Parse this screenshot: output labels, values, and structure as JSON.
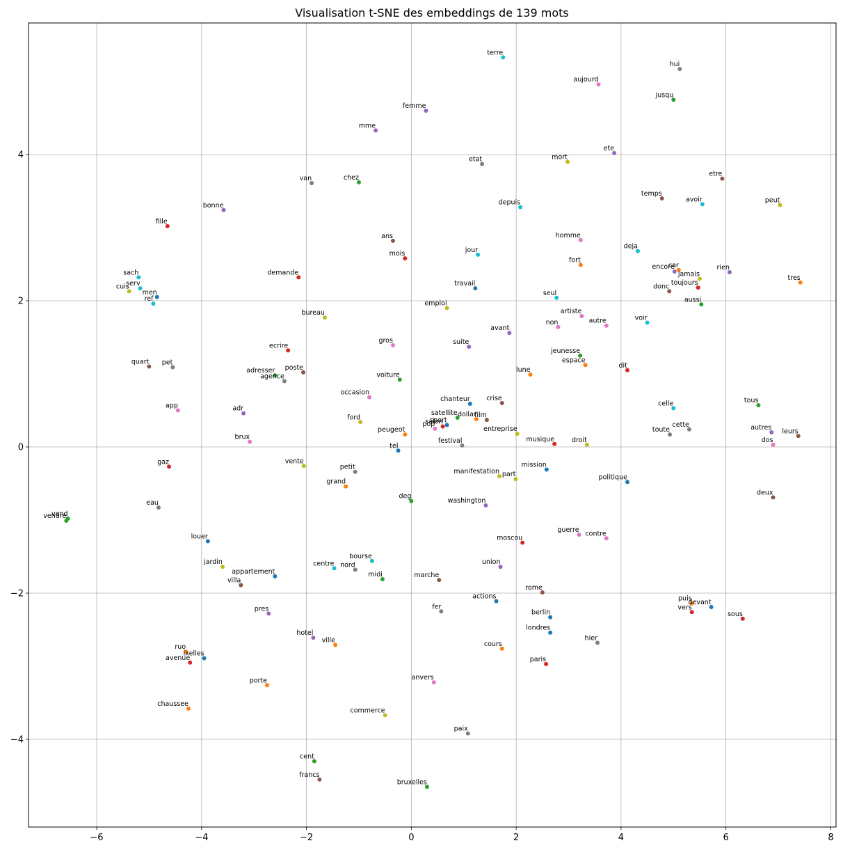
{
  "chart_data": {
    "type": "scatter",
    "title": "Visualisation t-SNE des embeddings de 139 mots",
    "xlabel": "",
    "ylabel": "",
    "xlim": [
      -7.3,
      8.1
    ],
    "ylim": [
      -5.2,
      5.8
    ],
    "xticks": [
      -6,
      -4,
      -2,
      0,
      2,
      4,
      6,
      8
    ],
    "yticks": [
      -4,
      -2,
      0,
      2,
      4
    ],
    "xtick_labels": [
      "−6",
      "−4",
      "−2",
      "0",
      "2",
      "4",
      "6",
      "8"
    ],
    "ytick_labels": [
      "−4",
      "−2",
      "0",
      "2",
      "4"
    ],
    "grid": true,
    "palette": [
      "#1f77b4",
      "#ff7f0e",
      "#2ca02c",
      "#d62728",
      "#9467bd",
      "#8c564b",
      "#e377c2",
      "#7f7f7f",
      "#bcbd22",
      "#17becf"
    ],
    "points": [
      {
        "word": "terre",
        "x": 1.75,
        "y": 5.33,
        "c": 9
      },
      {
        "word": "hui",
        "x": 5.12,
        "y": 5.17,
        "c": 7
      },
      {
        "word": "aujourd",
        "x": 3.57,
        "y": 4.96,
        "c": 6
      },
      {
        "word": "jusqu",
        "x": 5.0,
        "y": 4.75,
        "c": 2
      },
      {
        "word": "femme",
        "x": 0.28,
        "y": 4.6,
        "c": 4
      },
      {
        "word": "mme",
        "x": -0.68,
        "y": 4.33,
        "c": 4
      },
      {
        "word": "ete",
        "x": 3.87,
        "y": 4.02,
        "c": 4
      },
      {
        "word": "mort",
        "x": 2.98,
        "y": 3.9,
        "c": 8
      },
      {
        "word": "etat",
        "x": 1.35,
        "y": 3.87,
        "c": 7
      },
      {
        "word": "etre",
        "x": 5.93,
        "y": 3.67,
        "c": 5
      },
      {
        "word": "van",
        "x": -1.9,
        "y": 3.61,
        "c": 7
      },
      {
        "word": "chez",
        "x": -1.0,
        "y": 3.62,
        "c": 2
      },
      {
        "word": "temps",
        "x": 4.78,
        "y": 3.4,
        "c": 5
      },
      {
        "word": "avoir",
        "x": 5.55,
        "y": 3.32,
        "c": 9
      },
      {
        "word": "peut",
        "x": 7.03,
        "y": 3.31,
        "c": 8
      },
      {
        "word": "depuis",
        "x": 2.08,
        "y": 3.28,
        "c": 9
      },
      {
        "word": "bonne",
        "x": -3.58,
        "y": 3.24,
        "c": 4
      },
      {
        "word": "fille",
        "x": -4.65,
        "y": 3.02,
        "c": 3
      },
      {
        "word": "homme",
        "x": 3.23,
        "y": 2.83,
        "c": 6
      },
      {
        "word": "ans",
        "x": -0.35,
        "y": 2.82,
        "c": 5
      },
      {
        "word": "deja",
        "x": 4.32,
        "y": 2.68,
        "c": 9
      },
      {
        "word": "jour",
        "x": 1.27,
        "y": 2.63,
        "c": 9
      },
      {
        "word": "mois",
        "x": -0.12,
        "y": 2.58,
        "c": 3
      },
      {
        "word": "fort",
        "x": 3.23,
        "y": 2.49,
        "c": 1
      },
      {
        "word": "car",
        "x": 5.1,
        "y": 2.42,
        "c": 1
      },
      {
        "word": "encore",
        "x": 5.02,
        "y": 2.4,
        "c": 4
      },
      {
        "word": "rien",
        "x": 6.07,
        "y": 2.39,
        "c": 4
      },
      {
        "word": "sach",
        "x": -5.2,
        "y": 2.32,
        "c": 9
      },
      {
        "word": "demande",
        "x": -2.15,
        "y": 2.32,
        "c": 3
      },
      {
        "word": "jamais",
        "x": 5.5,
        "y": 2.3,
        "c": 8
      },
      {
        "word": "tres",
        "x": 7.42,
        "y": 2.25,
        "c": 1
      },
      {
        "word": "toujours",
        "x": 5.47,
        "y": 2.18,
        "c": 3
      },
      {
        "word": "serv",
        "x": -5.17,
        "y": 2.17,
        "c": 9
      },
      {
        "word": "travail",
        "x": 1.22,
        "y": 2.17,
        "c": 0
      },
      {
        "word": "donc",
        "x": 4.92,
        "y": 2.13,
        "c": 5
      },
      {
        "word": "cuis",
        "x": -5.38,
        "y": 2.13,
        "c": 8
      },
      {
        "word": "men",
        "x": -4.85,
        "y": 2.05,
        "c": 0
      },
      {
        "word": "seul",
        "x": 2.77,
        "y": 2.04,
        "c": 9
      },
      {
        "word": "ref",
        "x": -4.92,
        "y": 1.96,
        "c": 9
      },
      {
        "word": "aussi",
        "x": 5.53,
        "y": 1.95,
        "c": 2
      },
      {
        "word": "emploi",
        "x": 0.68,
        "y": 1.9,
        "c": 8
      },
      {
        "word": "artiste",
        "x": 3.25,
        "y": 1.79,
        "c": 6
      },
      {
        "word": "bureau",
        "x": -1.65,
        "y": 1.77,
        "c": 8
      },
      {
        "word": "voir",
        "x": 4.5,
        "y": 1.7,
        "c": 9
      },
      {
        "word": "autre",
        "x": 3.72,
        "y": 1.66,
        "c": 6
      },
      {
        "word": "non",
        "x": 2.8,
        "y": 1.64,
        "c": 6
      },
      {
        "word": "avant",
        "x": 1.87,
        "y": 1.56,
        "c": 4
      },
      {
        "word": "gros",
        "x": -0.35,
        "y": 1.39,
        "c": 6
      },
      {
        "word": "suite",
        "x": 1.1,
        "y": 1.37,
        "c": 4
      },
      {
        "word": "ecrire",
        "x": -2.35,
        "y": 1.32,
        "c": 3
      },
      {
        "word": "jeunesse",
        "x": 3.22,
        "y": 1.25,
        "c": 2
      },
      {
        "word": "espace",
        "x": 3.32,
        "y": 1.12,
        "c": 1
      },
      {
        "word": "quart",
        "x": -5.0,
        "y": 1.1,
        "c": 5
      },
      {
        "word": "pet",
        "x": -4.55,
        "y": 1.09,
        "c": 7
      },
      {
        "word": "dit",
        "x": 4.12,
        "y": 1.05,
        "c": 3
      },
      {
        "word": "poste",
        "x": -2.06,
        "y": 1.02,
        "c": 5
      },
      {
        "word": "adresser",
        "x": -2.6,
        "y": 0.98,
        "c": 2
      },
      {
        "word": "lune",
        "x": 2.27,
        "y": 0.99,
        "c": 1
      },
      {
        "word": "voiture",
        "x": -0.22,
        "y": 0.92,
        "c": 2
      },
      {
        "word": "agence",
        "x": -2.42,
        "y": 0.9,
        "c": 7
      },
      {
        "word": "occasion",
        "x": -0.8,
        "y": 0.68,
        "c": 6
      },
      {
        "word": "chanteur",
        "x": 1.12,
        "y": 0.59,
        "c": 0
      },
      {
        "word": "crise",
        "x": 1.73,
        "y": 0.6,
        "c": 5
      },
      {
        "word": "tous",
        "x": 6.62,
        "y": 0.57,
        "c": 2
      },
      {
        "word": "celle",
        "x": 5.0,
        "y": 0.53,
        "c": 9
      },
      {
        "word": "app",
        "x": -4.45,
        "y": 0.5,
        "c": 6
      },
      {
        "word": "adr",
        "x": -3.2,
        "y": 0.46,
        "c": 4
      },
      {
        "word": "satellite",
        "x": 0.88,
        "y": 0.4,
        "c": 2
      },
      {
        "word": "dollar",
        "x": 1.24,
        "y": 0.38,
        "c": 1
      },
      {
        "word": "film",
        "x": 1.44,
        "y": 0.37,
        "c": 5
      },
      {
        "word": "ford",
        "x": -0.97,
        "y": 0.34,
        "c": 8
      },
      {
        "word": "sport",
        "x": 0.68,
        "y": 0.3,
        "c": 0
      },
      {
        "word": "salon",
        "x": 0.6,
        "y": 0.28,
        "c": 3
      },
      {
        "word": "pop",
        "x": 0.45,
        "y": 0.25,
        "c": 6
      },
      {
        "word": "cette",
        "x": 5.3,
        "y": 0.24,
        "c": 7
      },
      {
        "word": "autres",
        "x": 6.87,
        "y": 0.2,
        "c": 4
      },
      {
        "word": "entreprise",
        "x": 2.02,
        "y": 0.18,
        "c": 8
      },
      {
        "word": "peugeot",
        "x": -0.12,
        "y": 0.17,
        "c": 1
      },
      {
        "word": "toute",
        "x": 4.93,
        "y": 0.17,
        "c": 7
      },
      {
        "word": "leurs",
        "x": 7.38,
        "y": 0.15,
        "c": 5
      },
      {
        "word": "brux",
        "x": -3.08,
        "y": 0.07,
        "c": 6
      },
      {
        "word": "musique",
        "x": 2.73,
        "y": 0.04,
        "c": 3
      },
      {
        "word": "droit",
        "x": 3.35,
        "y": 0.03,
        "c": 8
      },
      {
        "word": "festival",
        "x": 0.97,
        "y": 0.02,
        "c": 7
      },
      {
        "word": "dos",
        "x": 6.9,
        "y": 0.03,
        "c": 6
      },
      {
        "word": "tel",
        "x": -0.25,
        "y": -0.05,
        "c": 0
      },
      {
        "word": "gaz",
        "x": -4.62,
        "y": -0.27,
        "c": 3
      },
      {
        "word": "vente",
        "x": -2.05,
        "y": -0.26,
        "c": 8
      },
      {
        "word": "mission",
        "x": 2.58,
        "y": -0.31,
        "c": 0
      },
      {
        "word": "petit",
        "x": -1.07,
        "y": -0.34,
        "c": 7
      },
      {
        "word": "manifestation",
        "x": 1.68,
        "y": -0.4,
        "c": 8
      },
      {
        "word": "part",
        "x": 1.99,
        "y": -0.44,
        "c": 8
      },
      {
        "word": "politique",
        "x": 4.12,
        "y": -0.48,
        "c": 0
      },
      {
        "word": "grand",
        "x": -1.25,
        "y": -0.54,
        "c": 1
      },
      {
        "word": "deux",
        "x": 6.9,
        "y": -0.69,
        "c": 5
      },
      {
        "word": "deg",
        "x": 0.0,
        "y": -0.74,
        "c": 2
      },
      {
        "word": "washington",
        "x": 1.42,
        "y": -0.8,
        "c": 4
      },
      {
        "word": "eau",
        "x": -4.82,
        "y": -0.83,
        "c": 7
      },
      {
        "word": "vend",
        "x": -6.55,
        "y": -0.98,
        "c": 2
      },
      {
        "word": "vendre",
        "x": -6.58,
        "y": -1.01,
        "c": 2
      },
      {
        "word": "guerre",
        "x": 3.2,
        "y": -1.2,
        "c": 6
      },
      {
        "word": "contre",
        "x": 3.72,
        "y": -1.25,
        "c": 6
      },
      {
        "word": "louer",
        "x": -3.88,
        "y": -1.29,
        "c": 0
      },
      {
        "word": "moscou",
        "x": 2.12,
        "y": -1.31,
        "c": 3
      },
      {
        "word": "bourse",
        "x": -0.75,
        "y": -1.56,
        "c": 9
      },
      {
        "word": "jardin",
        "x": -3.6,
        "y": -1.64,
        "c": 8
      },
      {
        "word": "union",
        "x": 1.7,
        "y": -1.64,
        "c": 4
      },
      {
        "word": "centre",
        "x": -1.47,
        "y": -1.66,
        "c": 9
      },
      {
        "word": "nord",
        "x": -1.07,
        "y": -1.68,
        "c": 7
      },
      {
        "word": "appartement",
        "x": -2.6,
        "y": -1.77,
        "c": 0
      },
      {
        "word": "midi",
        "x": -0.55,
        "y": -1.81,
        "c": 2
      },
      {
        "word": "marche",
        "x": 0.53,
        "y": -1.82,
        "c": 5
      },
      {
        "word": "villa",
        "x": -3.25,
        "y": -1.89,
        "c": 5
      },
      {
        "word": "rome",
        "x": 2.5,
        "y": -1.99,
        "c": 5
      },
      {
        "word": "actions",
        "x": 1.62,
        "y": -2.11,
        "c": 0
      },
      {
        "word": "devant",
        "x": 5.72,
        "y": -2.19,
        "c": 0
      },
      {
        "word": "puis",
        "x": 5.35,
        "y": -2.14,
        "c": 1
      },
      {
        "word": "vers",
        "x": 5.35,
        "y": -2.26,
        "c": 3
      },
      {
        "word": "pres",
        "x": -2.72,
        "y": -2.28,
        "c": 4
      },
      {
        "word": "fer",
        "x": 0.57,
        "y": -2.25,
        "c": 7
      },
      {
        "word": "berlin",
        "x": 2.65,
        "y": -2.33,
        "c": 0
      },
      {
        "word": "sous",
        "x": 6.32,
        "y": -2.35,
        "c": 3
      },
      {
        "word": "londres",
        "x": 2.65,
        "y": -2.54,
        "c": 0
      },
      {
        "word": "hotel",
        "x": -1.87,
        "y": -2.61,
        "c": 4
      },
      {
        "word": "hier",
        "x": 3.55,
        "y": -2.68,
        "c": 7
      },
      {
        "word": "ville",
        "x": -1.45,
        "y": -2.71,
        "c": 1
      },
      {
        "word": "cours",
        "x": 1.73,
        "y": -2.76,
        "c": 1
      },
      {
        "word": "ruo",
        "x": -4.3,
        "y": -2.8,
        "c": 1
      },
      {
        "word": "ixelles",
        "x": -3.95,
        "y": -2.89,
        "c": 0
      },
      {
        "word": "avenue",
        "x": -4.22,
        "y": -2.95,
        "c": 3
      },
      {
        "word": "paris",
        "x": 2.57,
        "y": -2.97,
        "c": 3
      },
      {
        "word": "anvers",
        "x": 0.43,
        "y": -3.22,
        "c": 6
      },
      {
        "word": "porte",
        "x": -2.75,
        "y": -3.26,
        "c": 1
      },
      {
        "word": "chaussee",
        "x": -4.25,
        "y": -3.58,
        "c": 1
      },
      {
        "word": "commerce",
        "x": -0.5,
        "y": -3.67,
        "c": 8
      },
      {
        "word": "paix",
        "x": 1.08,
        "y": -3.92,
        "c": 7
      },
      {
        "word": "cent",
        "x": -1.85,
        "y": -4.3,
        "c": 2
      },
      {
        "word": "francs",
        "x": -1.75,
        "y": -4.55,
        "c": 5
      },
      {
        "word": "bruxelles",
        "x": 0.3,
        "y": -4.65,
        "c": 2
      }
    ]
  }
}
